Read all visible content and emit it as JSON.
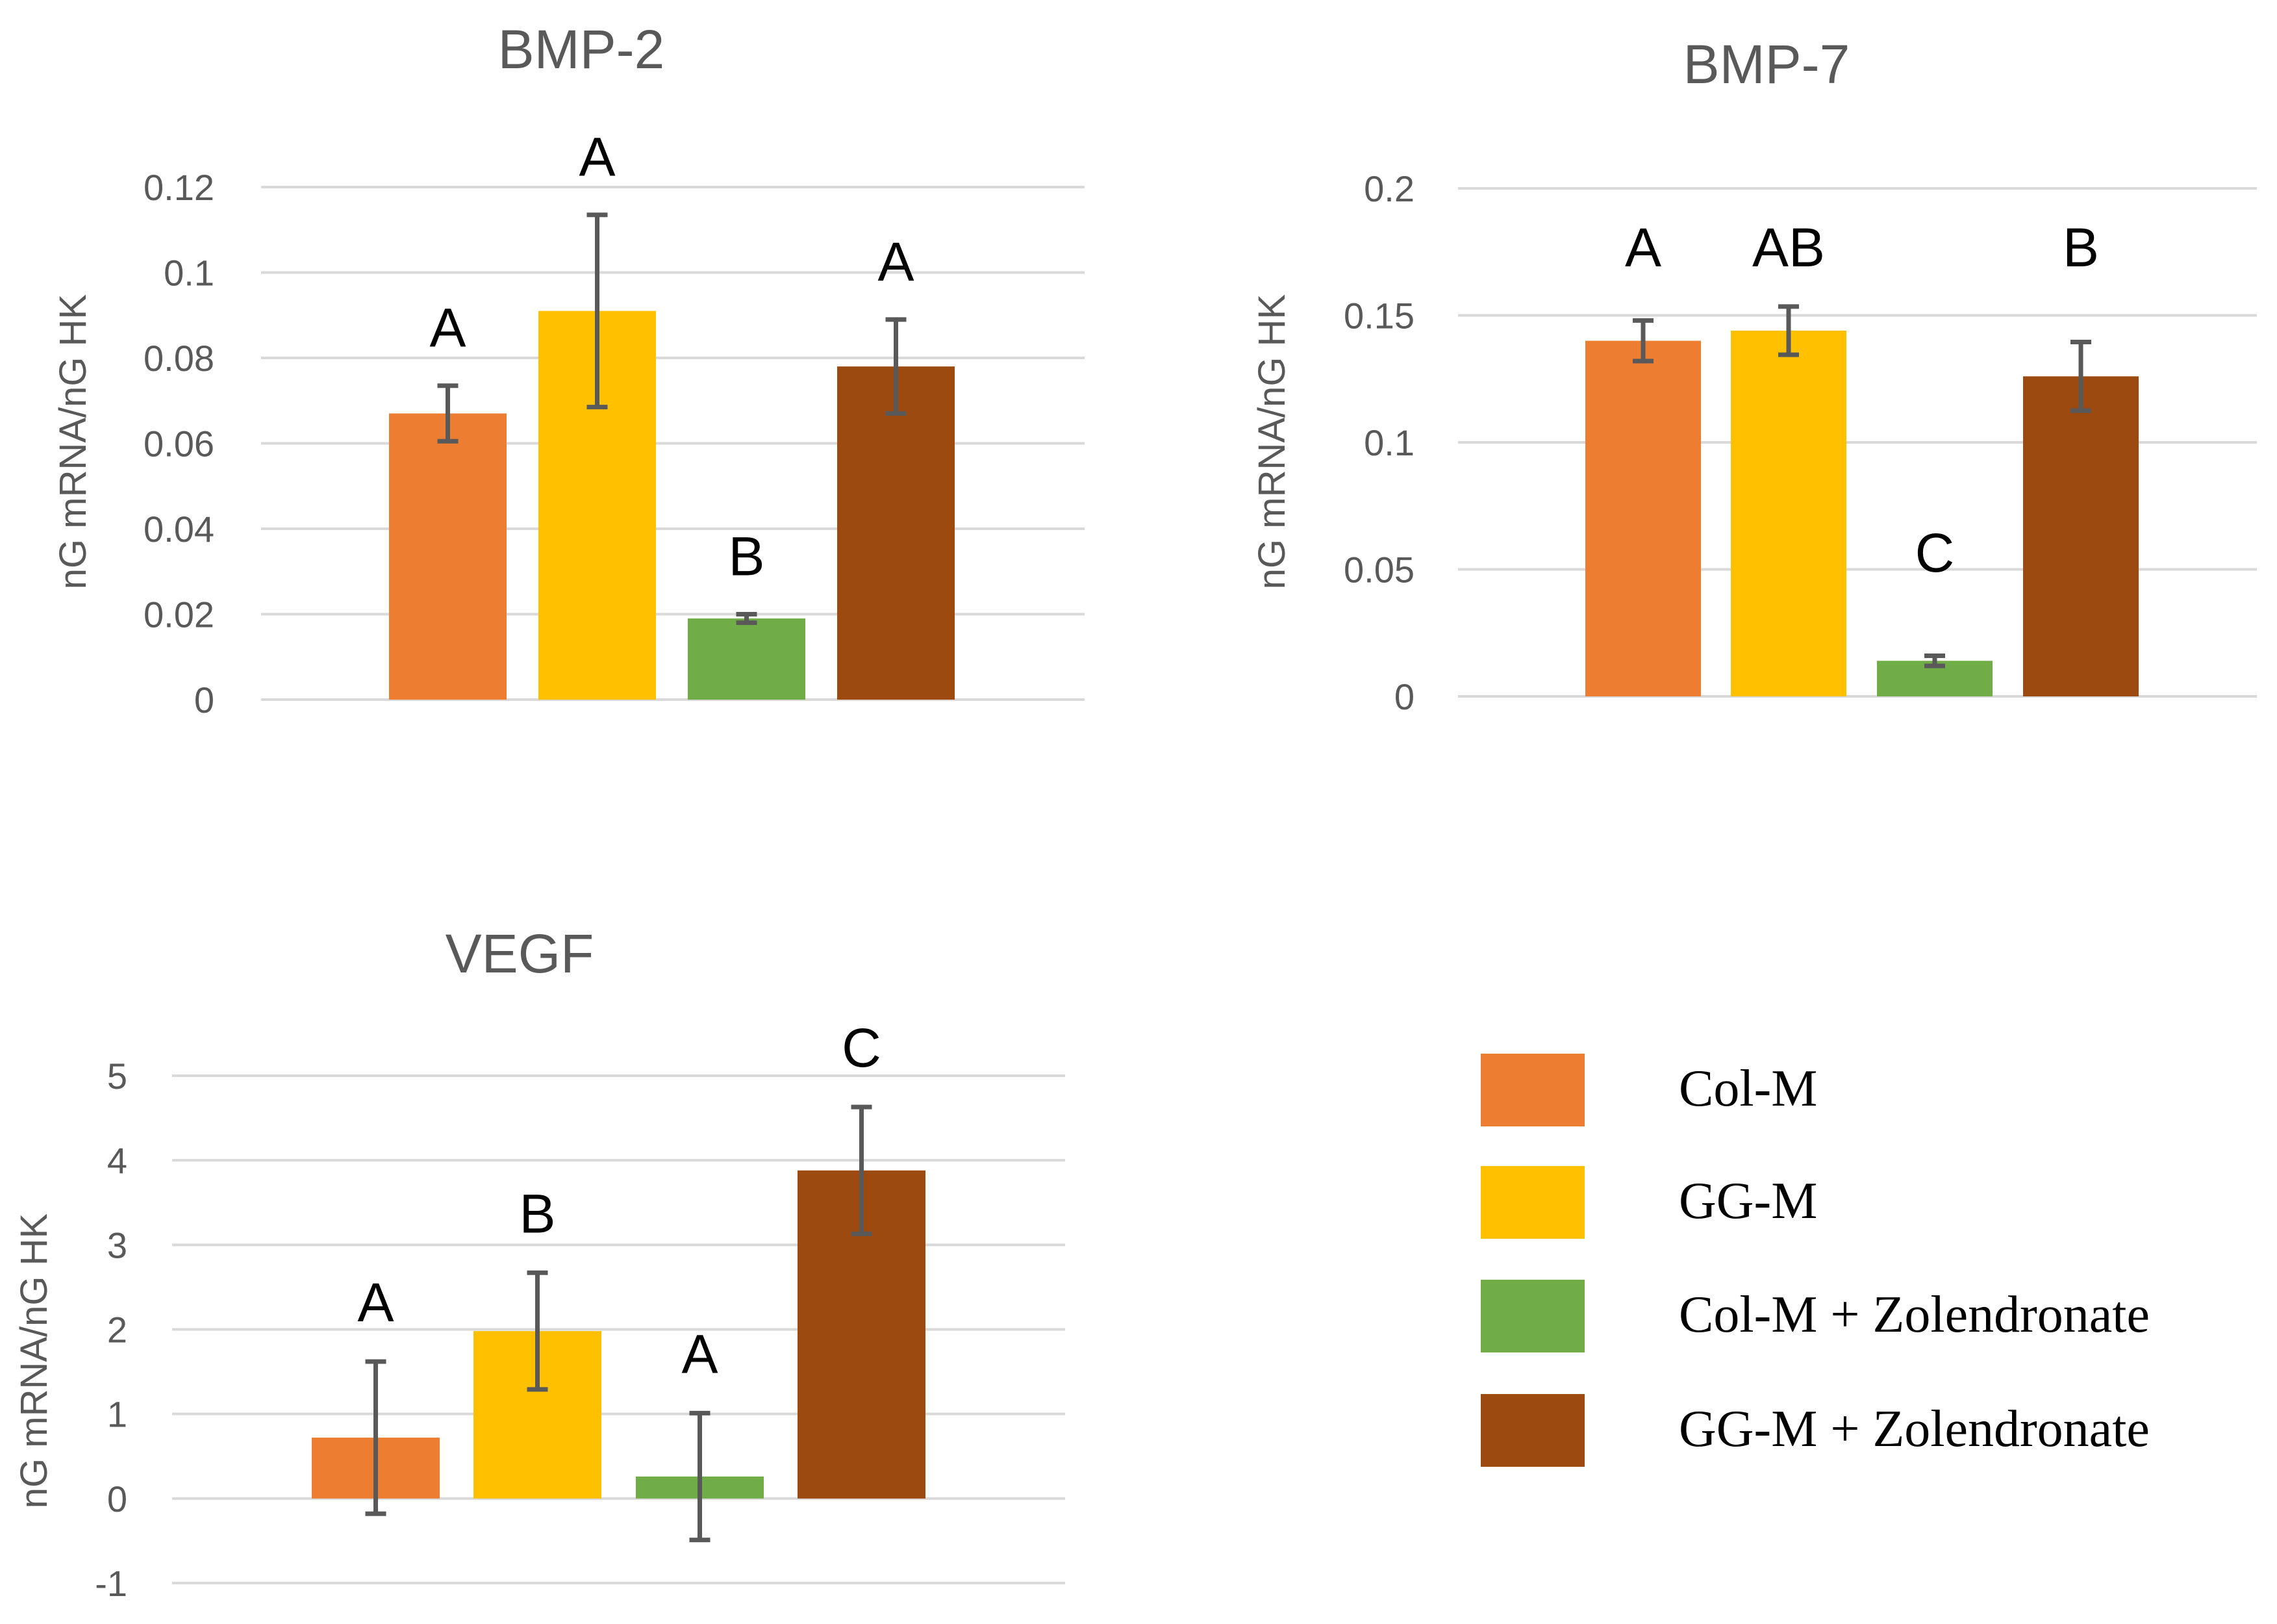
{
  "legend": {
    "items": [
      {
        "label": "Col-M",
        "color": "#ED7D31"
      },
      {
        "label": "GG-M",
        "color": "#FFC000"
      },
      {
        "label": "Col-M + Zolendronate",
        "color": "#70AD47"
      },
      {
        "label": "GG-M + Zolendronate",
        "color": "#9C4A0F"
      }
    ]
  },
  "colors": {
    "grid": "#D9D9D9",
    "tick_text": "#595959",
    "title_text": "#595959",
    "error_bar": "#595959",
    "letter_text": "#000000"
  },
  "chart_data": [
    {
      "type": "bar",
      "title": "BMP-2",
      "ylabel": "nG mRNA/nG HK",
      "xlabel": "",
      "categories": [
        "Col-M",
        "GG-M",
        "Col-M + Zolendronate",
        "GG-M + Zolendronate"
      ],
      "values": [
        0.067,
        0.091,
        0.019,
        0.078
      ],
      "errors": [
        0.0065,
        0.0225,
        0.001,
        0.011
      ],
      "significance": [
        "A",
        "A",
        "B",
        "A"
      ],
      "ylim": [
        0,
        0.12
      ],
      "yticks": [
        0,
        0.02,
        0.04,
        0.06,
        0.08,
        0.1,
        0.12
      ],
      "ytick_labels": [
        "0",
        "0.02",
        "0.04",
        "0.06",
        "0.08",
        "0.1",
        "0.12"
      ],
      "grid": true
    },
    {
      "type": "bar",
      "title": "BMP-7",
      "ylabel": "nG mRNA/nG HK",
      "xlabel": "",
      "categories": [
        "Col-M",
        "GG-M",
        "Col-M + Zolendronate",
        "GG-M + Zolendronate"
      ],
      "values": [
        0.14,
        0.144,
        0.014,
        0.126
      ],
      "errors": [
        0.008,
        0.0095,
        0.002,
        0.0135
      ],
      "significance": [
        "A",
        "AB",
        "C",
        "B"
      ],
      "ylim": [
        0,
        0.2
      ],
      "yticks": [
        0,
        0.05,
        0.1,
        0.15,
        0.2
      ],
      "ytick_labels": [
        "0",
        "0.05",
        "0.1",
        "0.15",
        "0.2"
      ],
      "grid": true
    },
    {
      "type": "bar",
      "title": "VEGF",
      "ylabel": "nG mRNA/nG HK",
      "xlabel": "",
      "categories": [
        "Col-M",
        "GG-M",
        "Col-M + Zolendronate",
        "GG-M + Zolendronate"
      ],
      "values": [
        0.72,
        1.98,
        0.26,
        3.88
      ],
      "errors": [
        0.9,
        0.69,
        0.75,
        0.75
      ],
      "significance": [
        "A",
        "B",
        "A",
        "C"
      ],
      "ylim": [
        -1,
        5
      ],
      "yticks": [
        -1,
        0,
        1,
        2,
        3,
        4,
        5
      ],
      "ytick_labels": [
        "-1",
        "0",
        "1",
        "2",
        "3",
        "4",
        "5"
      ],
      "grid": true
    }
  ]
}
